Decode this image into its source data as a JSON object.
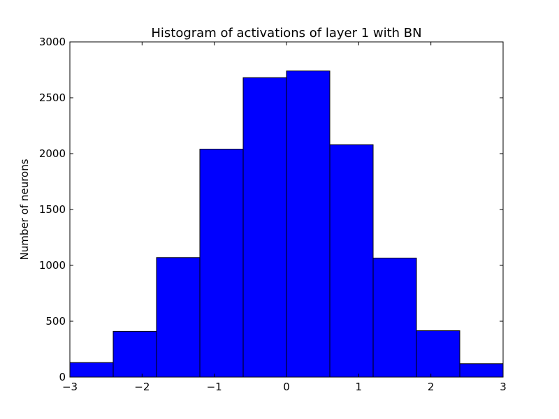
{
  "chart_data": {
    "type": "bar",
    "title": "Histogram of activations of layer 1  with BN",
    "xlabel": "",
    "ylabel": "Number of neurons",
    "xlim": [
      -3,
      3
    ],
    "ylim": [
      0,
      3000
    ],
    "bin_edges": [
      -3,
      -2.4,
      -1.8,
      -1.2,
      -0.6,
      0,
      0.6,
      1.2,
      1.8,
      2.4,
      3
    ],
    "values": [
      130,
      410,
      1070,
      2040,
      2680,
      2740,
      2080,
      1065,
      415,
      120
    ],
    "x_ticks": [
      -3,
      -2,
      -1,
      0,
      1,
      2,
      3
    ],
    "x_tick_labels": [
      "−3",
      "−2",
      "−1",
      "0",
      "1",
      "2",
      "3"
    ],
    "y_ticks": [
      0,
      500,
      1000,
      1500,
      2000,
      2500,
      3000
    ],
    "y_tick_labels": [
      "0",
      "500",
      "1000",
      "1500",
      "2000",
      "2500",
      "3000"
    ],
    "bar_color": "#0000ff",
    "edge_color": "#000000",
    "grid": false
  }
}
